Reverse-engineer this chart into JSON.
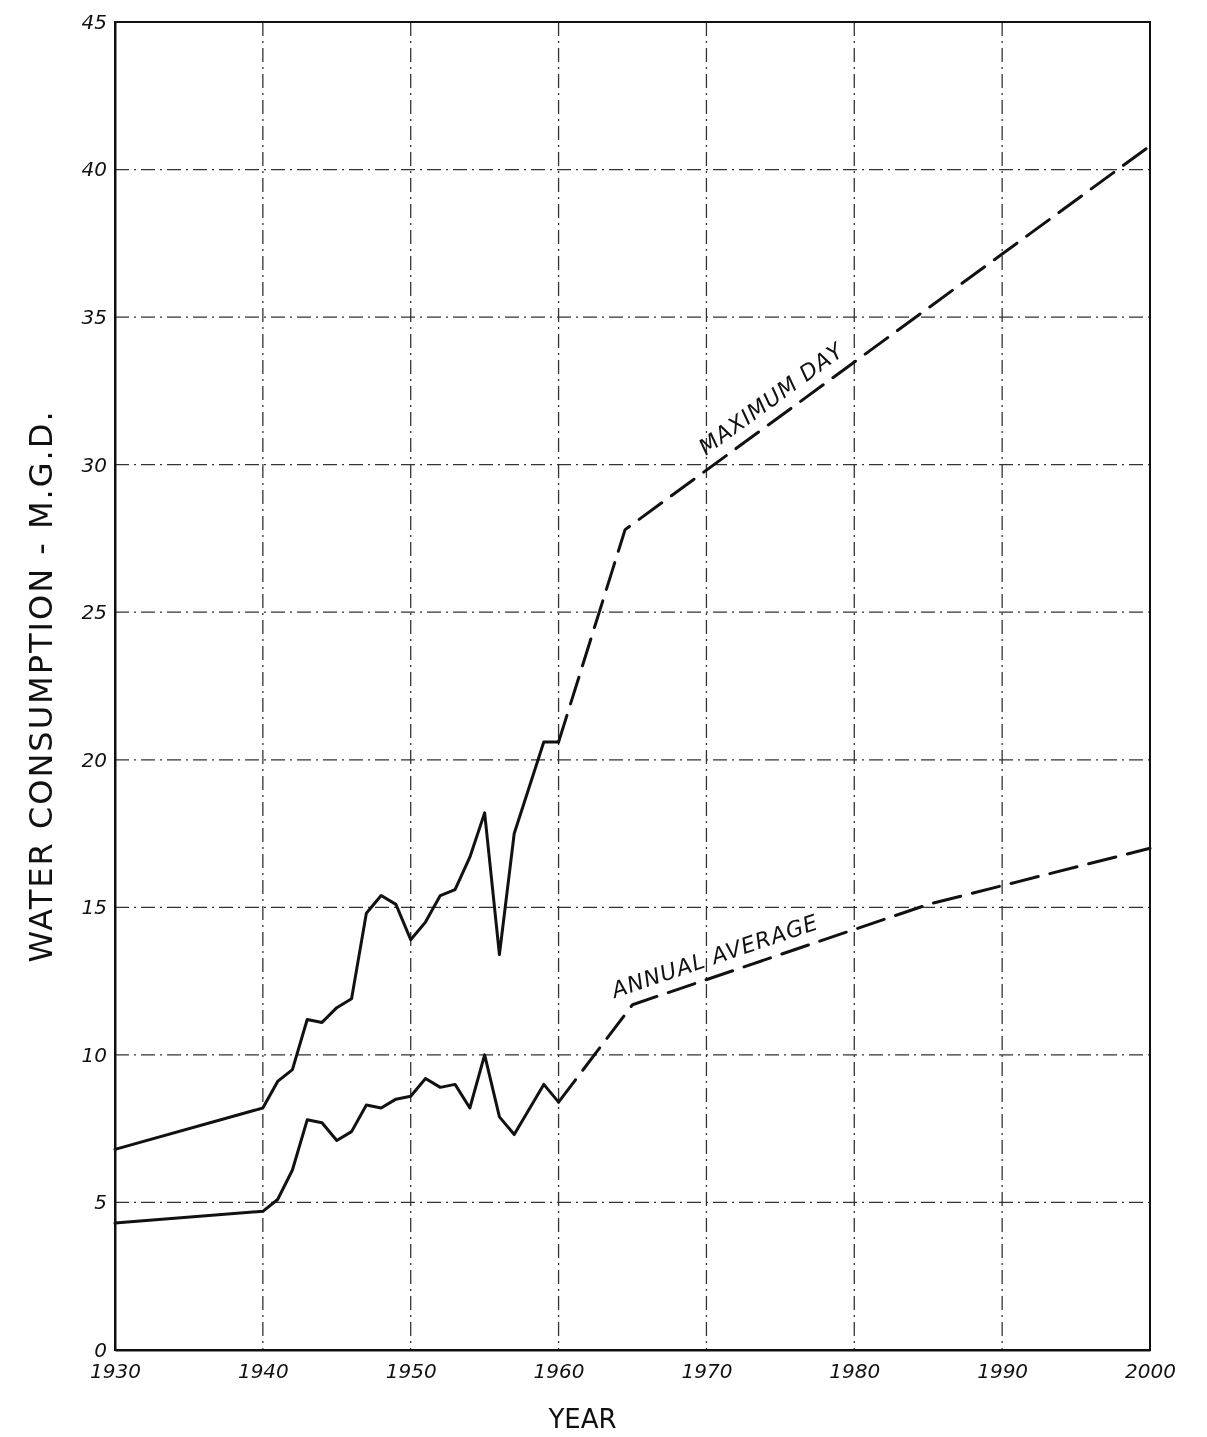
{
  "chart_data": {
    "type": "line",
    "xlabel": "YEAR",
    "ylabel": "WATER CONSUMPTION - M.G.D.",
    "xlim": [
      1930,
      2000
    ],
    "xticks": [
      1930,
      1940,
      1950,
      1960,
      1970,
      1980,
      1990,
      2000
    ],
    "ylim": [
      0,
      45
    ],
    "yticks": [
      0,
      5,
      10,
      15,
      20,
      25,
      30,
      35,
      40,
      45
    ],
    "grid": true,
    "marker": "none",
    "series": [
      {
        "color": "#111111",
        "line_style": "solid",
        "x": [
          1930,
          1940,
          1941,
          1942,
          1943,
          1944,
          1945,
          1946,
          1947,
          1948,
          1949,
          1950,
          1951,
          1952,
          1953,
          1954,
          1955,
          1956,
          1957,
          1959,
          1960
        ],
        "values": [
          6.8,
          8.2,
          9.1,
          9.5,
          11.2,
          11.1,
          11.6,
          11.9,
          14.8,
          15.4,
          15.1,
          13.9,
          14.5,
          15.4,
          15.6,
          16.7,
          18.2,
          13.4,
          17.5,
          20.6,
          20.6
        ]
      },
      {
        "name": "MAXIMUM DAY",
        "color": "#111111",
        "line_style": "dashed",
        "x": [
          1960,
          1964.5,
          2000
        ],
        "values": [
          20.6,
          27.8,
          40.8
        ]
      },
      {
        "color": "#111111",
        "line_style": "solid",
        "x": [
          1930,
          1940,
          1941,
          1942,
          1943,
          1944,
          1945,
          1946,
          1947,
          1948,
          1949,
          1950,
          1951,
          1952,
          1953,
          1954,
          1955,
          1956,
          1957,
          1959,
          1960
        ],
        "values": [
          4.3,
          4.7,
          5.1,
          6.1,
          7.8,
          7.7,
          7.1,
          7.4,
          8.3,
          8.2,
          8.5,
          8.6,
          9.2,
          8.9,
          9.0,
          8.2,
          10.0,
          7.9,
          7.3,
          9.0,
          8.4
        ]
      },
      {
        "name": "ANNUAL AVERAGE",
        "color": "#111111",
        "line_style": "dashed",
        "x": [
          1960,
          1965,
          1985,
          2000
        ],
        "values": [
          8.4,
          11.7,
          15.1,
          17.0
        ]
      }
    ]
  }
}
